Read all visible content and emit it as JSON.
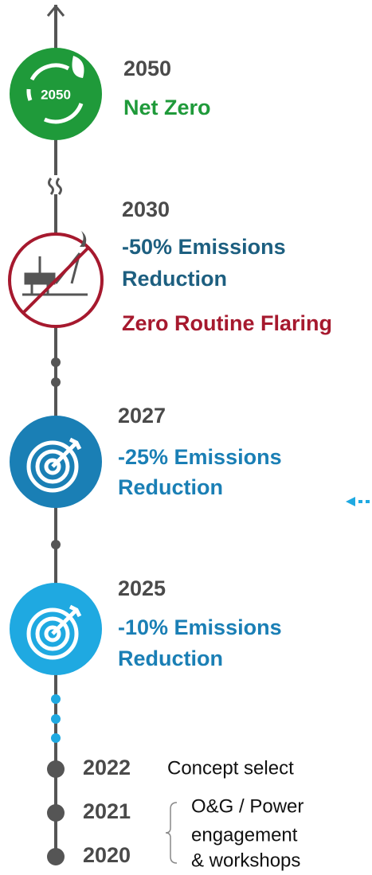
{
  "milestones": [
    {
      "year": "2050",
      "icon_text": "2050",
      "lines": [
        "Net Zero"
      ]
    },
    {
      "year": "2030",
      "lines": [
        "-50% Emissions",
        "Reduction"
      ],
      "note": "Zero Routine Flaring"
    },
    {
      "year": "2027",
      "lines": [
        "-25% Emissions",
        "Reduction"
      ]
    },
    {
      "year": "2025",
      "lines": [
        "-10% Emissions",
        "Reduction"
      ]
    }
  ],
  "early": [
    {
      "year": "2022",
      "label": "Concept select"
    },
    {
      "year": "2021"
    },
    {
      "year": "2020"
    }
  ],
  "early_note": [
    "O&G / Power",
    "engagement",
    "& workshops"
  ]
}
